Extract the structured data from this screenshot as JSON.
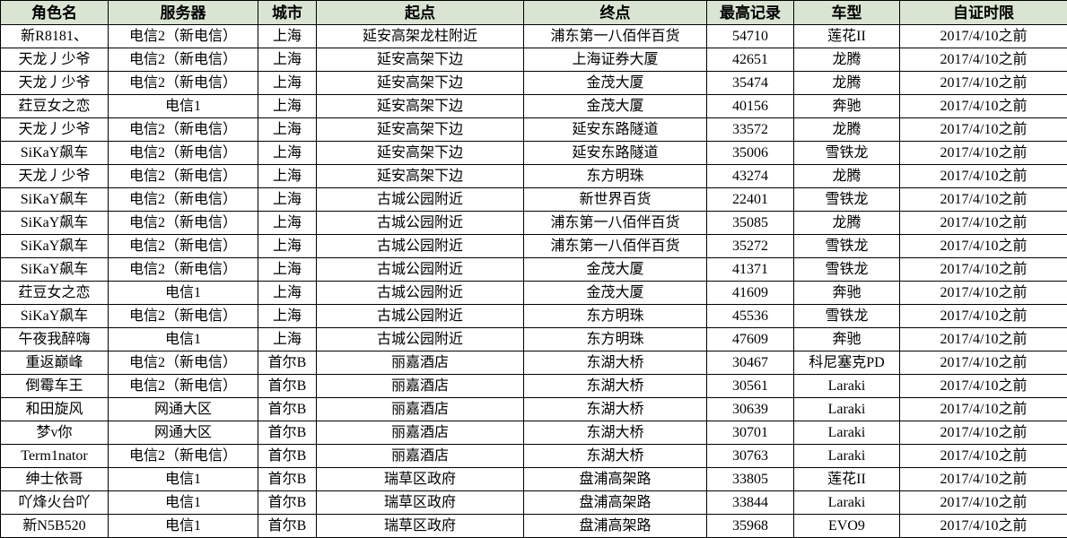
{
  "table": {
    "columns": [
      {
        "key": "role",
        "label": "角色名"
      },
      {
        "key": "server",
        "label": "服务器"
      },
      {
        "key": "city",
        "label": "城市"
      },
      {
        "key": "start",
        "label": "起点"
      },
      {
        "key": "end",
        "label": "终点"
      },
      {
        "key": "record",
        "label": "最高记录"
      },
      {
        "key": "car",
        "label": "车型"
      },
      {
        "key": "deadline",
        "label": "自证时限"
      }
    ],
    "rows": [
      [
        "新R8181、",
        "电信2（新电信）",
        "上海",
        "延安高架龙柱附近",
        "浦东第一八佰伴百货",
        "54710",
        "莲花II",
        "2017/4/10之前"
      ],
      [
        "天龙丿少爷",
        "电信2（新电信）",
        "上海",
        "延安高架下边",
        "上海证券大厦",
        "42651",
        "龙腾",
        "2017/4/10之前"
      ],
      [
        "天龙丿少爷",
        "电信2（新电信）",
        "上海",
        "延安高架下边",
        "金茂大厦",
        "35474",
        "龙腾",
        "2017/4/10之前"
      ],
      [
        "荭豆女之恋",
        "电信1",
        "上海",
        "延安高架下边",
        "金茂大厦",
        "40156",
        "奔驰",
        "2017/4/10之前"
      ],
      [
        "天龙丿少爷",
        "电信2（新电信）",
        "上海",
        "延安高架下边",
        "延安东路隧道",
        "33572",
        "龙腾",
        "2017/4/10之前"
      ],
      [
        "SiKaY飙车",
        "电信2（新电信）",
        "上海",
        "延安高架下边",
        "延安东路隧道",
        "35006",
        "雪铁龙",
        "2017/4/10之前"
      ],
      [
        "天龙丿少爷",
        "电信2（新电信）",
        "上海",
        "延安高架下边",
        "东方明珠",
        "43274",
        "龙腾",
        "2017/4/10之前"
      ],
      [
        "SiKaY飙车",
        "电信2（新电信）",
        "上海",
        "古城公园附近",
        "新世界百货",
        "22401",
        "雪铁龙",
        "2017/4/10之前"
      ],
      [
        "SiKaY飙车",
        "电信2（新电信）",
        "上海",
        "古城公园附近",
        "浦东第一八佰伴百货",
        "35085",
        "龙腾",
        "2017/4/10之前"
      ],
      [
        "SiKaY飙车",
        "电信2（新电信）",
        "上海",
        "古城公园附近",
        "浦东第一八佰伴百货",
        "35272",
        "雪铁龙",
        "2017/4/10之前"
      ],
      [
        "SiKaY飙车",
        "电信2（新电信）",
        "上海",
        "古城公园附近",
        "金茂大厦",
        "41371",
        "雪铁龙",
        "2017/4/10之前"
      ],
      [
        "荭豆女之恋",
        "电信1",
        "上海",
        "古城公园附近",
        "金茂大厦",
        "41609",
        "奔驰",
        "2017/4/10之前"
      ],
      [
        "SiKaY飙车",
        "电信2（新电信）",
        "上海",
        "古城公园附近",
        "东方明珠",
        "45536",
        "雪铁龙",
        "2017/4/10之前"
      ],
      [
        "午夜我醉嗨",
        "电信1",
        "上海",
        "古城公园附近",
        "东方明珠",
        "47609",
        "奔驰",
        "2017/4/10之前"
      ],
      [
        "重返巅峰",
        "电信2（新电信）",
        "首尔B",
        "丽嘉酒店",
        "东湖大桥",
        "30467",
        "科尼塞克PD",
        "2017/4/10之前"
      ],
      [
        "倒霉车王",
        "电信2（新电信）",
        "首尔B",
        "丽嘉酒店",
        "东湖大桥",
        "30561",
        "Laraki",
        "2017/4/10之前"
      ],
      [
        "和田旋风",
        "网通大区",
        "首尔B",
        "丽嘉酒店",
        "东湖大桥",
        "30639",
        "Laraki",
        "2017/4/10之前"
      ],
      [
        "梦v你",
        "网通大区",
        "首尔B",
        "丽嘉酒店",
        "东湖大桥",
        "30701",
        "Laraki",
        "2017/4/10之前"
      ],
      [
        "Term1nator",
        "电信2（新电信）",
        "首尔B",
        "丽嘉酒店",
        "东湖大桥",
        "30763",
        "Laraki",
        "2017/4/10之前"
      ],
      [
        "绅士依哥",
        "电信1",
        "首尔B",
        "瑞草区政府",
        "盘浦高架路",
        "33805",
        "莲花II",
        "2017/4/10之前"
      ],
      [
        "吖烽火台吖",
        "电信1",
        "首尔B",
        "瑞草区政府",
        "盘浦高架路",
        "33844",
        "Laraki",
        "2017/4/10之前"
      ],
      [
        "新N5B520",
        "电信1",
        "首尔B",
        "瑞草区政府",
        "盘浦高架路",
        "35968",
        "EVO9",
        "2017/4/10之前"
      ]
    ]
  },
  "colors": {
    "header_bg": "#d9e5d2",
    "border": "#000000",
    "cell_bg": "#ffffff",
    "text": "#000000"
  }
}
